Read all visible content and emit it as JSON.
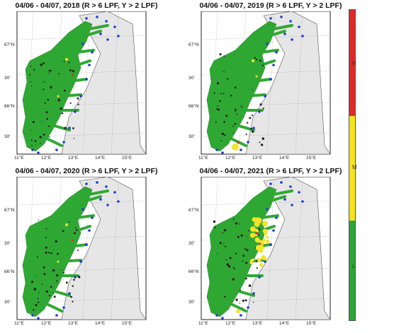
{
  "panels": [
    {
      "title": "04/06 - 04/07, 2018 (R > 6 LPF, Y > 2 LPF)",
      "hotspots": "few"
    },
    {
      "title": "04/06 - 04/07, 2019 (R > 6 LPF, Y > 2 LPF)",
      "hotspots": "south"
    },
    {
      "title": "04/06 - 04/07, 2020 (R > 6 LPF, Y > 2 LPF)",
      "hotspots": "few"
    },
    {
      "title": "04/06 - 04/07, 2021 (R > 6 LPF, Y > 2 LPF)",
      "hotspots": "many"
    }
  ],
  "lat_labels": [
    "67°N",
    "30'",
    "66°N",
    "30'"
  ],
  "lon_labels": [
    "11°E",
    "12°E",
    "13°E",
    "14°E",
    "15°E"
  ],
  "scale": {
    "labels": [
      "H",
      "M",
      "L"
    ],
    "colors": {
      "H": "#dc2a2a",
      "M": "#f4e321",
      "L": "#2ea43a"
    }
  },
  "colors": {
    "land": "#e6e6e6",
    "farm": "#2fa833",
    "site": "#1f3ad8",
    "yellow": "#f3e42a",
    "red": "#d42a1f"
  }
}
